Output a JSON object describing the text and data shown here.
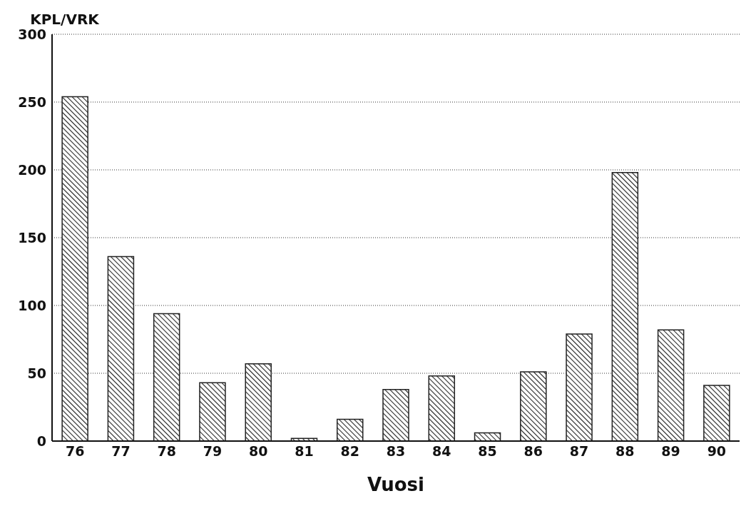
{
  "chart_data": {
    "type": "bar",
    "ylabel": "KPL/VRK",
    "xlabel": "Vuosi",
    "categories": [
      "76",
      "77",
      "78",
      "79",
      "80",
      "81",
      "82",
      "83",
      "84",
      "85",
      "86",
      "87",
      "88",
      "89",
      "90"
    ],
    "values": [
      254,
      136,
      94,
      43,
      57,
      2,
      16,
      38,
      48,
      6,
      51,
      79,
      198,
      82,
      41
    ],
    "color": "#222222",
    "ylim": [
      0,
      300
    ],
    "yticks": [
      0,
      50,
      100,
      150,
      200,
      250,
      300
    ],
    "grid": "y"
  }
}
